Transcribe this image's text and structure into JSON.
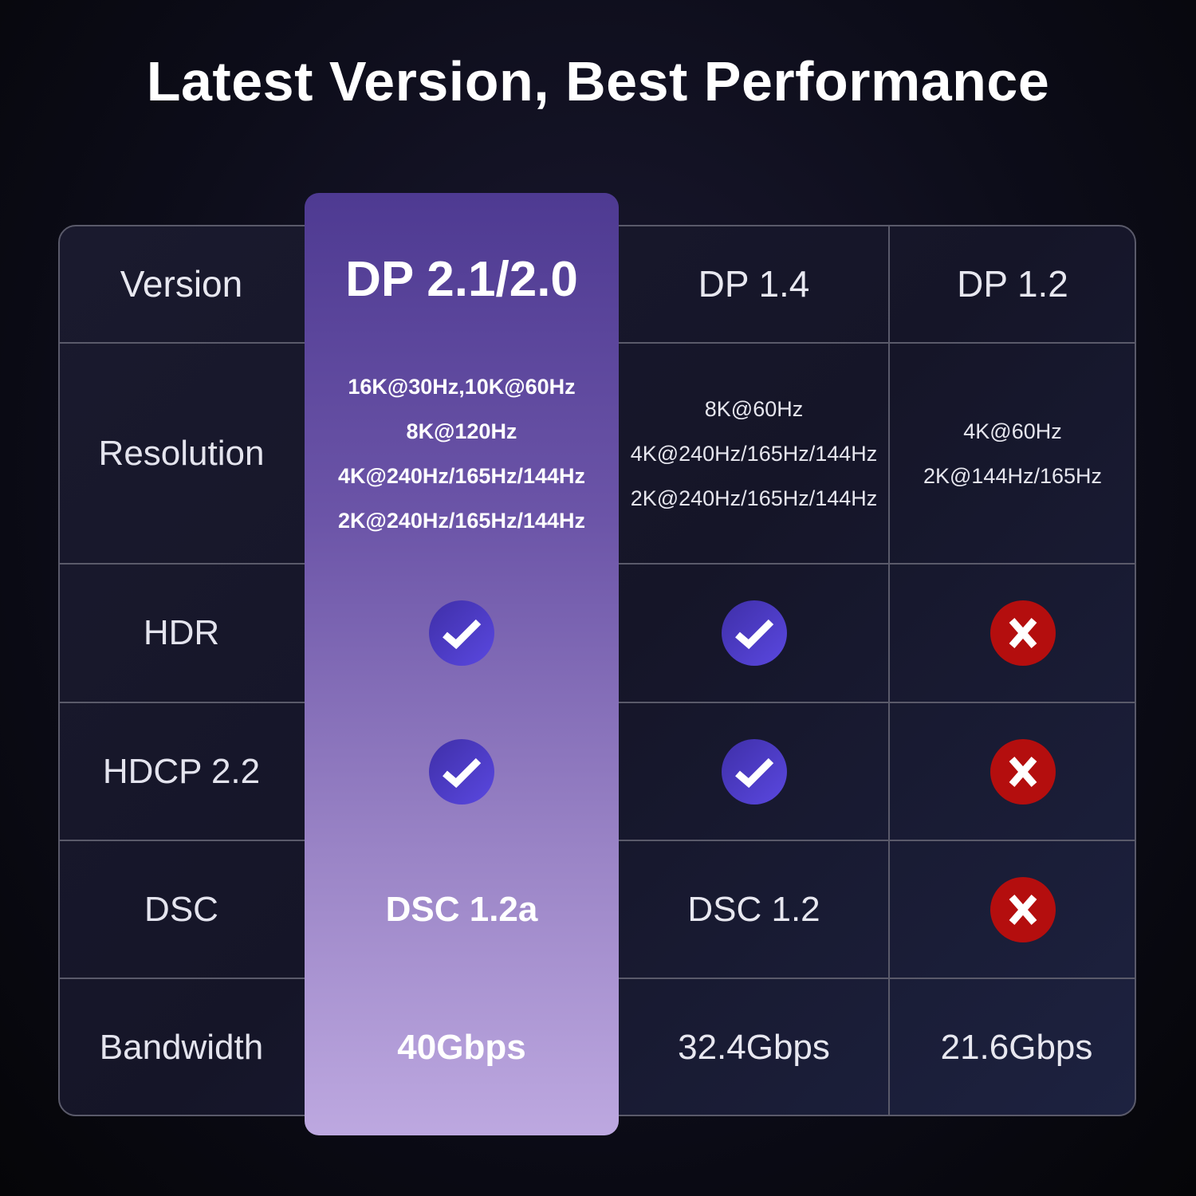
{
  "title": "Latest Version, Best Performance",
  "colors": {
    "highlight": "#6c55a8",
    "check": "#5a48e0",
    "cross": "#b40e0e"
  },
  "table": {
    "headers": [
      "Version",
      "DP 2.1/2.0",
      "DP 1.4",
      "DP 1.2"
    ],
    "rows": {
      "resolution": {
        "label": "Resolution",
        "values": [
          [
            "16K@30Hz,10K@60Hz",
            "8K@120Hz",
            "4K@240Hz/165Hz/144Hz",
            "2K@240Hz/165Hz/144Hz"
          ],
          [
            "8K@60Hz",
            "4K@240Hz/165Hz/144Hz",
            "2K@240Hz/165Hz/144Hz"
          ],
          [
            "4K@60Hz",
            "2K@144Hz/165Hz"
          ]
        ]
      },
      "hdr": {
        "label": "HDR",
        "values": [
          "check-icon",
          "check-icon",
          "cross-icon"
        ]
      },
      "hdcp": {
        "label": "HDCP 2.2",
        "values": [
          "check-icon",
          "check-icon",
          "cross-icon"
        ]
      },
      "dsc": {
        "label": "DSC",
        "values": [
          "DSC 1.2a",
          "DSC 1.2",
          "cross-icon"
        ]
      },
      "bandwidth": {
        "label": "Bandwidth",
        "values": [
          "40Gbps",
          "32.4Gbps",
          "21.6Gbps"
        ]
      }
    }
  }
}
